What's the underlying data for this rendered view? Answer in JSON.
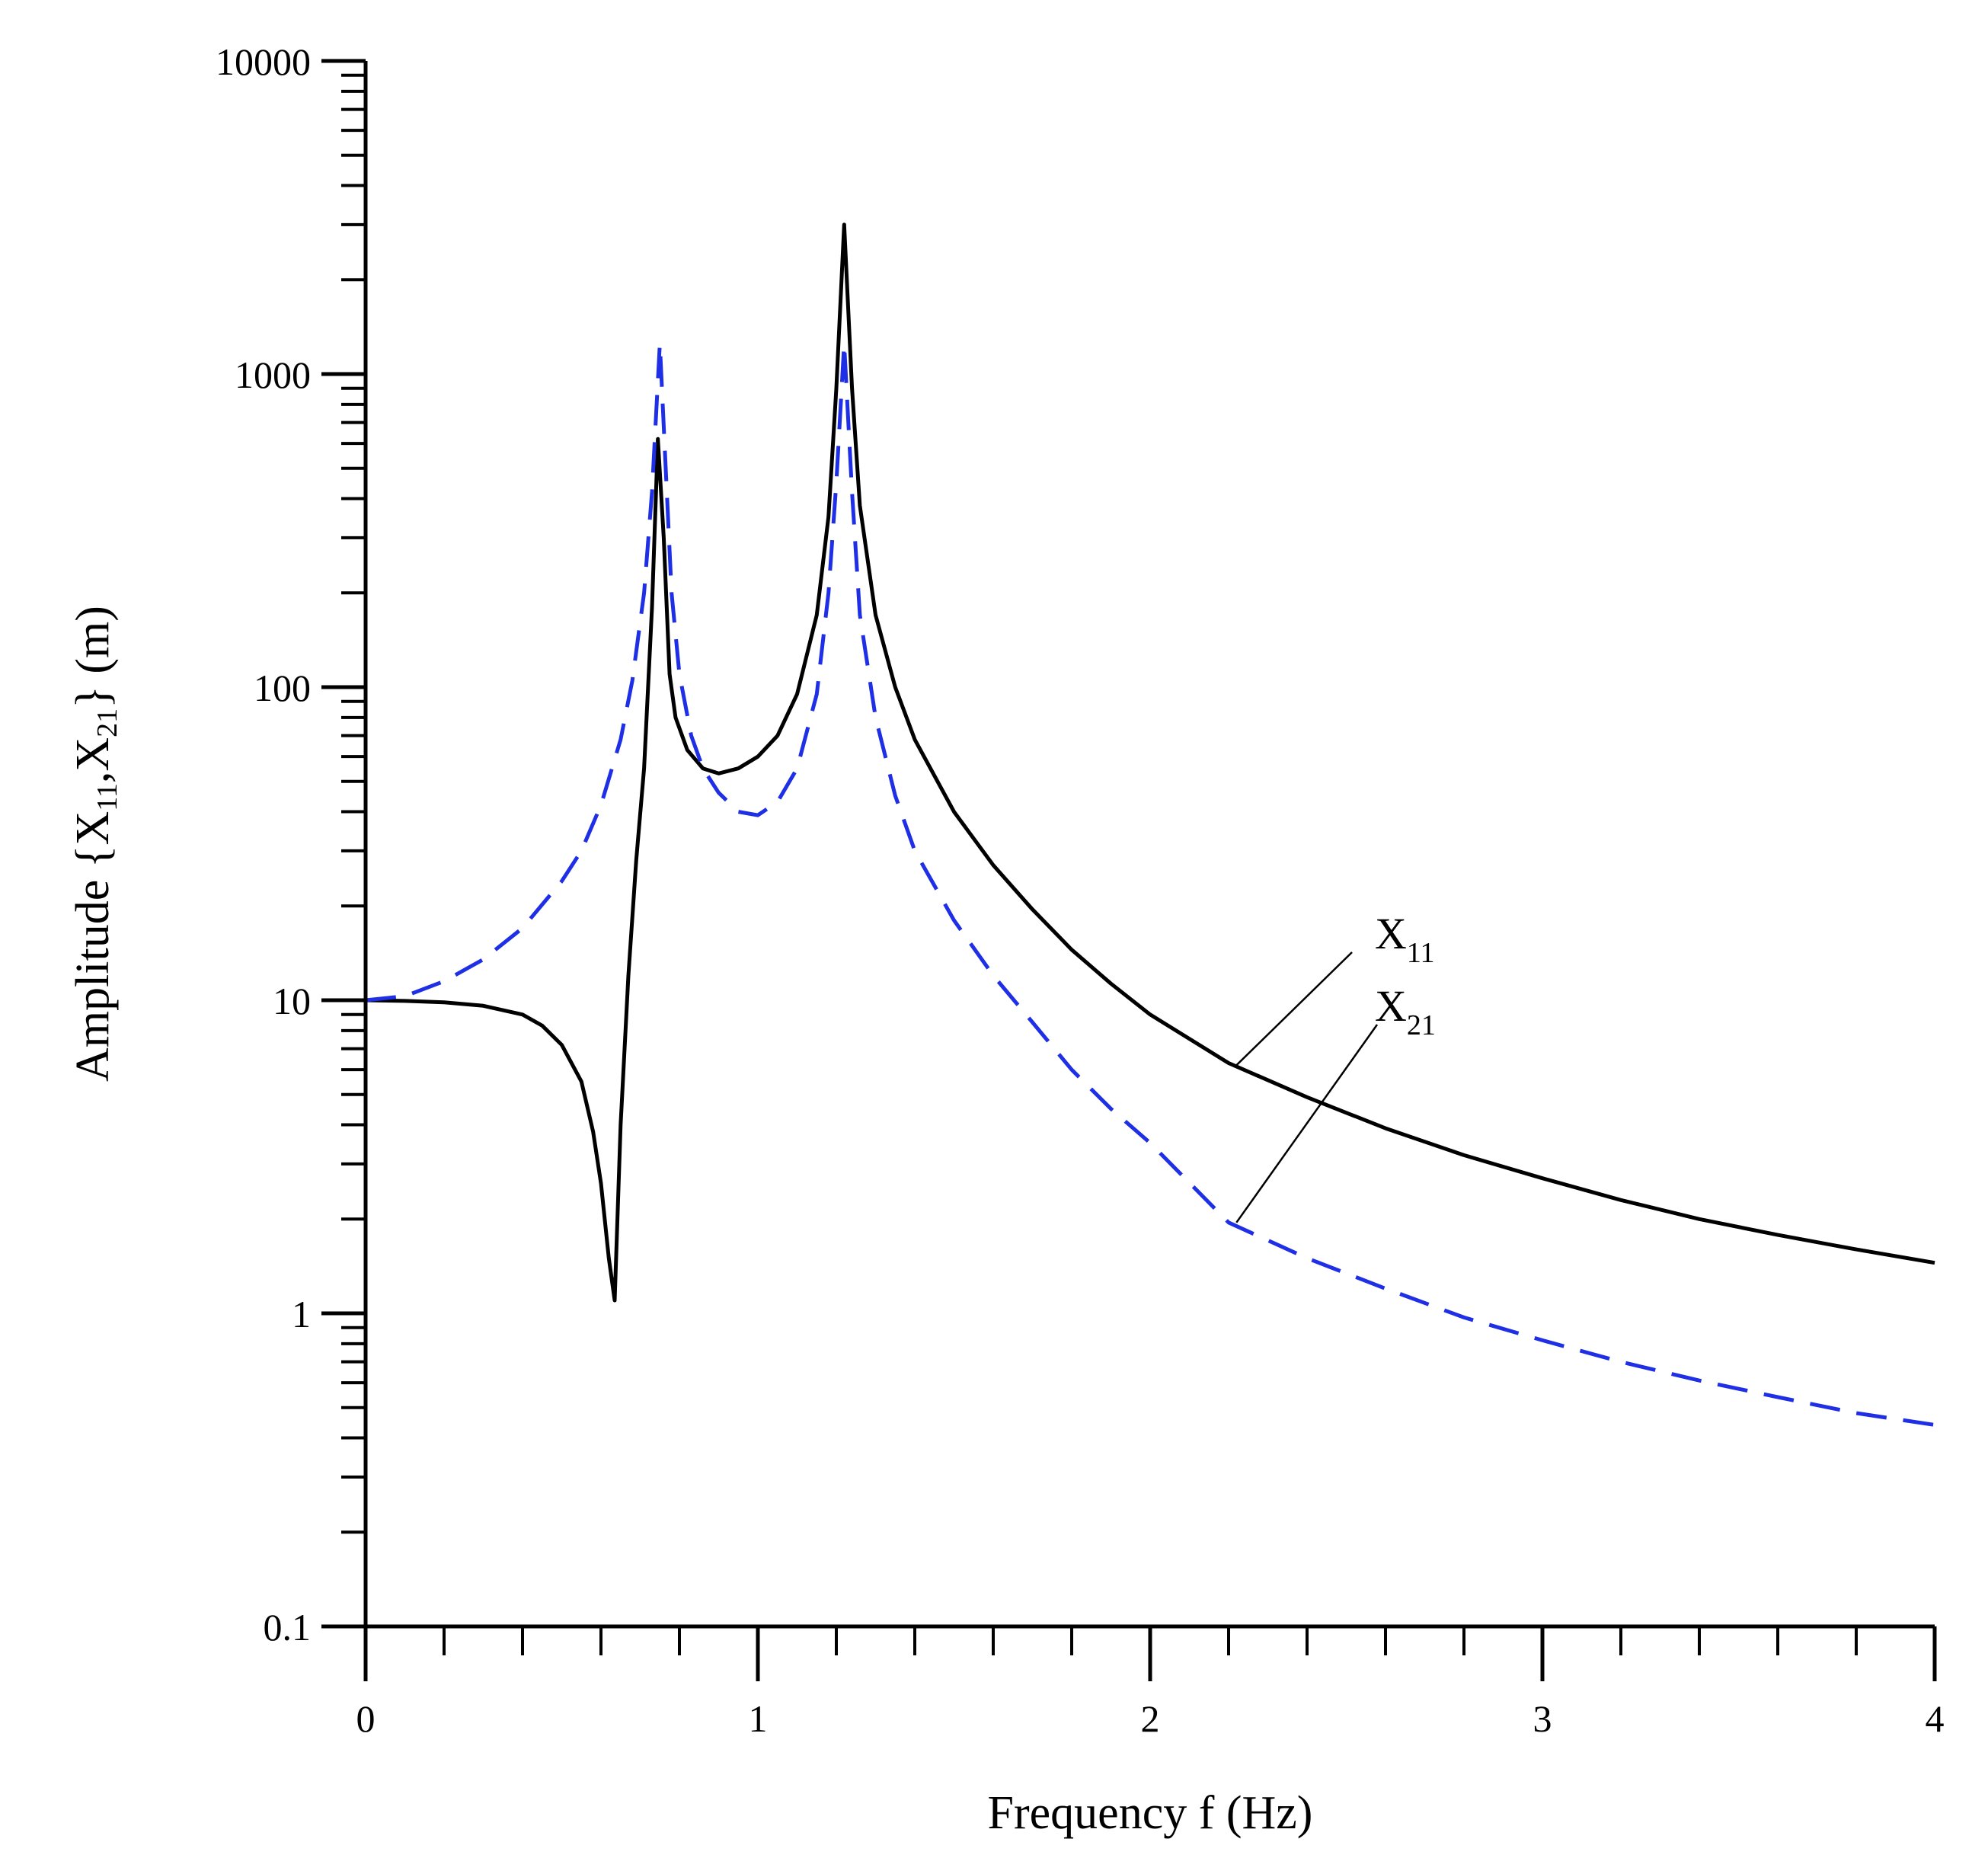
{
  "chart_data": {
    "type": "line",
    "title": "",
    "xlabel": "Frequency f (Hz)",
    "ylabel": "Amplitude {X11,X21} (m)",
    "ylabel_parts": {
      "pre": "Amplitude {X",
      "sub1": "11",
      "mid": ",X",
      "sub2": "21",
      "post": "} (m)"
    },
    "xscale": "linear",
    "yscale": "log",
    "xlim": [
      0,
      4
    ],
    "ylim": [
      0.1,
      10000
    ],
    "grid": false,
    "x_major_ticks": [
      0,
      1,
      2,
      3,
      4
    ],
    "x_tick_labels": [
      "0",
      "1",
      "2",
      "3",
      "4"
    ],
    "x_minor_step": 0.2,
    "y_major_ticks": [
      0.1,
      1,
      10,
      100,
      1000,
      10000
    ],
    "y_tick_labels": [
      "0.1",
      "1",
      "10",
      "100",
      "1000",
      "10000"
    ],
    "series": [
      {
        "name": "X11",
        "label_base": "X",
        "label_sub": "11",
        "color": "#000000",
        "style": "solid",
        "annotation_anchor": [
          2.22,
          6.2
        ],
        "points": [
          [
            0.0,
            10
          ],
          [
            0.1,
            9.95
          ],
          [
            0.2,
            9.85
          ],
          [
            0.3,
            9.6
          ],
          [
            0.4,
            9.0
          ],
          [
            0.45,
            8.3
          ],
          [
            0.5,
            7.2
          ],
          [
            0.55,
            5.5
          ],
          [
            0.58,
            3.8
          ],
          [
            0.6,
            2.6
          ],
          [
            0.62,
            1.5
          ],
          [
            0.635,
            1.1
          ],
          [
            0.65,
            4
          ],
          [
            0.67,
            12
          ],
          [
            0.69,
            28
          ],
          [
            0.71,
            55
          ],
          [
            0.73,
            180
          ],
          [
            0.745,
            620
          ],
          [
            0.76,
            300
          ],
          [
            0.775,
            110
          ],
          [
            0.79,
            80
          ],
          [
            0.82,
            63
          ],
          [
            0.86,
            55
          ],
          [
            0.9,
            53
          ],
          [
            0.95,
            55
          ],
          [
            1.0,
            60
          ],
          [
            1.05,
            70
          ],
          [
            1.1,
            95
          ],
          [
            1.15,
            170
          ],
          [
            1.18,
            350
          ],
          [
            1.2,
            900
          ],
          [
            1.22,
            3000
          ],
          [
            1.24,
            900
          ],
          [
            1.26,
            380
          ],
          [
            1.3,
            170
          ],
          [
            1.35,
            100
          ],
          [
            1.4,
            68
          ],
          [
            1.5,
            40
          ],
          [
            1.6,
            27
          ],
          [
            1.7,
            19.5
          ],
          [
            1.8,
            14.5
          ],
          [
            1.9,
            11.3
          ],
          [
            2.0,
            9.0
          ],
          [
            2.2,
            6.3
          ],
          [
            2.4,
            4.9
          ],
          [
            2.6,
            3.9
          ],
          [
            2.8,
            3.2
          ],
          [
            3.0,
            2.7
          ],
          [
            3.2,
            2.3
          ],
          [
            3.4,
            2.0
          ],
          [
            3.6,
            1.78
          ],
          [
            3.8,
            1.6
          ],
          [
            4.0,
            1.45
          ]
        ]
      },
      {
        "name": "X21",
        "label_base": "X",
        "label_sub": "21",
        "color": "#1f2fe6",
        "style": "dashed",
        "annotation_anchor": [
          2.22,
          1.95
        ],
        "points": [
          [
            0.0,
            10
          ],
          [
            0.1,
            10.3
          ],
          [
            0.2,
            11.5
          ],
          [
            0.3,
            13.5
          ],
          [
            0.4,
            17
          ],
          [
            0.5,
            24
          ],
          [
            0.55,
            30
          ],
          [
            0.6,
            42
          ],
          [
            0.65,
            68
          ],
          [
            0.68,
            105
          ],
          [
            0.71,
            200
          ],
          [
            0.73,
            420
          ],
          [
            0.75,
            1250
          ],
          [
            0.765,
            500
          ],
          [
            0.78,
            200
          ],
          [
            0.8,
            110
          ],
          [
            0.83,
            70
          ],
          [
            0.86,
            55
          ],
          [
            0.9,
            46
          ],
          [
            0.95,
            40
          ],
          [
            1.0,
            39
          ],
          [
            1.05,
            43
          ],
          [
            1.1,
            55
          ],
          [
            1.15,
            95
          ],
          [
            1.18,
            200
          ],
          [
            1.2,
            450
          ],
          [
            1.22,
            1250
          ],
          [
            1.24,
            420
          ],
          [
            1.26,
            170
          ],
          [
            1.3,
            80
          ],
          [
            1.35,
            45
          ],
          [
            1.4,
            30
          ],
          [
            1.5,
            18
          ],
          [
            1.6,
            12
          ],
          [
            1.7,
            8.5
          ],
          [
            1.8,
            6
          ],
          [
            1.9,
            4.5
          ],
          [
            2.0,
            3.5
          ],
          [
            2.2,
            1.95
          ],
          [
            2.4,
            1.5
          ],
          [
            2.6,
            1.2
          ],
          [
            2.8,
            0.97
          ],
          [
            3.0,
            0.82
          ],
          [
            3.2,
            0.7
          ],
          [
            3.4,
            0.61
          ],
          [
            3.6,
            0.54
          ],
          [
            3.8,
            0.48
          ],
          [
            4.0,
            0.44
          ]
        ]
      }
    ]
  }
}
